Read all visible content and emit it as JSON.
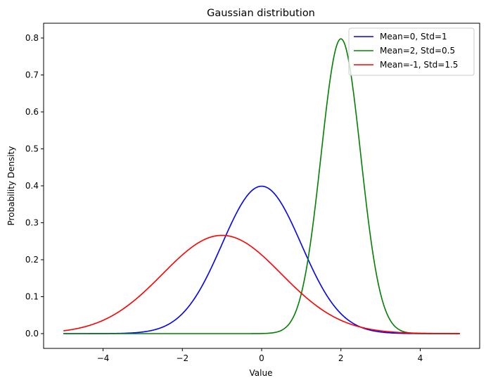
{
  "chart_data": {
    "type": "line",
    "title": "Gaussian distribution",
    "xlabel": "Value",
    "ylabel": "Probability Density",
    "xlim": [
      -5.5,
      5.5
    ],
    "ylim": [
      -0.04,
      0.84
    ],
    "grid": false,
    "legend_position": "top-right",
    "x_ticks": [
      -4,
      -2,
      0,
      2,
      4
    ],
    "x_tick_labels": [
      "−4",
      "−2",
      "0",
      "2",
      "4"
    ],
    "y_ticks": [
      0.0,
      0.1,
      0.2,
      0.3,
      0.4,
      0.5,
      0.6,
      0.7,
      0.8
    ],
    "y_tick_labels": [
      "0.0",
      "0.1",
      "0.2",
      "0.3",
      "0.4",
      "0.5",
      "0.6",
      "0.7",
      "0.8"
    ],
    "x_range": [
      -5,
      5
    ],
    "series": [
      {
        "name": "Mean=0, Std=1",
        "mean": 0,
        "std": 1,
        "color": "#0000ff"
      },
      {
        "name": "Mean=2, Std=0.5",
        "mean": 2,
        "std": 0.5,
        "color": "#008000"
      },
      {
        "name": "Mean=-1, Std=1.5",
        "mean": -1,
        "std": 1.5,
        "color": "#ff0000"
      }
    ]
  }
}
